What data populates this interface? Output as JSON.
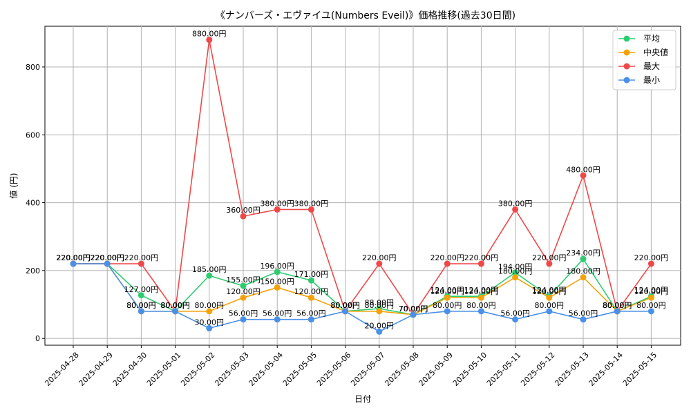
{
  "chart_data": {
    "type": "line",
    "title": "《ナンバーズ・エヴァイユ(Numbers Eveil)》価格推移(過去30日間)",
    "xlabel": "日付",
    "ylabel": "値 (円)",
    "categories": [
      "2025-04-28",
      "2025-04-29",
      "2025-04-30",
      "2025-05-01",
      "2025-05-02",
      "2025-05-03",
      "2025-05-04",
      "2025-05-05",
      "2025-05-06",
      "2025-05-07",
      "2025-05-08",
      "2025-05-09",
      "2025-05-10",
      "2025-05-11",
      "2025-05-12",
      "2025-05-13",
      "2025-05-14",
      "2025-05-15"
    ],
    "ylim": [
      -20,
      920
    ],
    "yticks": [
      0,
      200,
      400,
      600,
      800
    ],
    "grid": true,
    "legend_position": "top-right",
    "value_label_suffix": "円",
    "series": [
      {
        "name": "平均",
        "color": "#2ecc71",
        "values": [
          220,
          220,
          127,
          80,
          185,
          155,
          196,
          171,
          80,
          88,
          70,
          124,
          124,
          194,
          124,
          234,
          80,
          124
        ]
      },
      {
        "name": "中央値",
        "color": "#f5a20a",
        "values": [
          220,
          220,
          80,
          80,
          80,
          120,
          150,
          120,
          80,
          80,
          70,
          120,
          120,
          180,
          120,
          180,
          80,
          120
        ]
      },
      {
        "name": "最大",
        "color": "#f04848",
        "values": [
          220,
          220,
          220,
          80,
          880,
          360,
          380,
          380,
          80,
          220,
          70,
          220,
          220,
          380,
          220,
          480,
          80,
          220
        ]
      },
      {
        "name": "最小",
        "color": "#4a90e8",
        "values": [
          220,
          220,
          80,
          80,
          30,
          56,
          56,
          56,
          80,
          20,
          70,
          80,
          80,
          56,
          80,
          56,
          80,
          80
        ]
      }
    ]
  }
}
